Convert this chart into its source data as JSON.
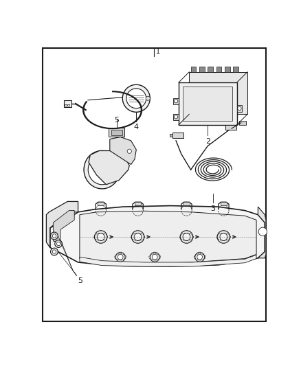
{
  "bg_color": "#ffffff",
  "border_color": "#1a1a1a",
  "lc": "#1a1a1a",
  "fig_width": 4.38,
  "fig_height": 5.33,
  "dpi": 100
}
